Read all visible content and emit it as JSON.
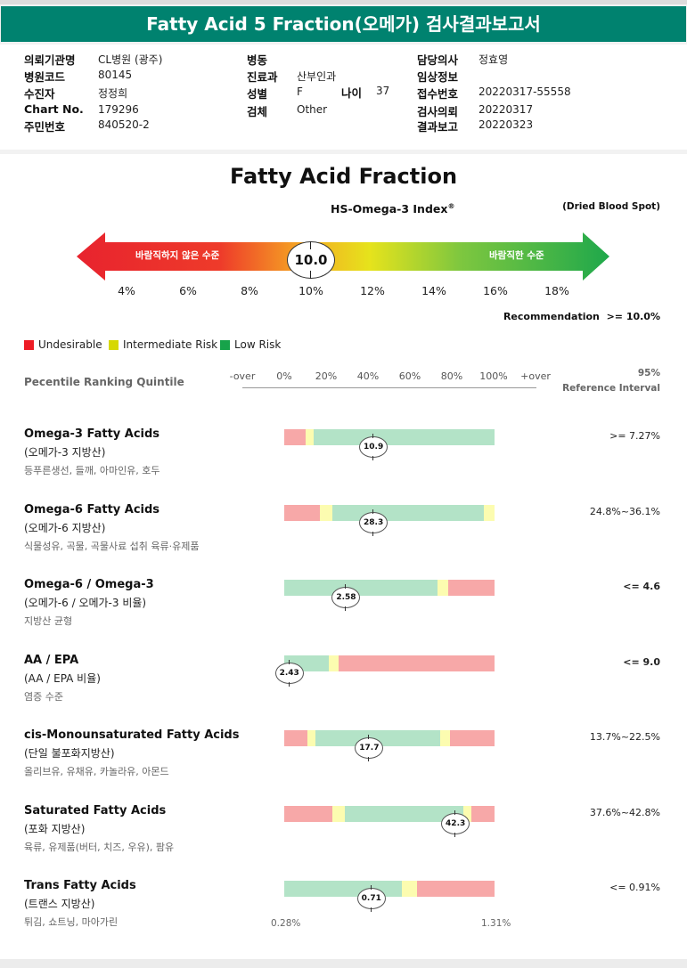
{
  "report": {
    "title": "Fatty Acid 5 Fraction(오메가) 검사결과보고서"
  },
  "patient_info": {
    "col1": [
      {
        "label": "의뢰기관명",
        "value": "CL병원 (광주)"
      },
      {
        "label": "병원코드",
        "value": "80145"
      },
      {
        "label": "수진자",
        "value": "정정희"
      },
      {
        "label": "Chart No.",
        "value": "179296"
      },
      {
        "label": "주민번호",
        "value": "840520-2"
      }
    ],
    "col2": [
      {
        "label": "병동",
        "value": ""
      },
      {
        "label": "진료과",
        "value": "산부인과"
      },
      {
        "label": "성별",
        "value": "F"
      },
      {
        "label": "검체",
        "value": "Other"
      }
    ],
    "age_label": "나이",
    "age_value": "37",
    "col3": [
      {
        "label": "담당의사",
        "value": "정효영"
      },
      {
        "label": "임상정보",
        "value": ""
      },
      {
        "label": "접수번호",
        "value": "20220317-55558"
      },
      {
        "label": "검사의뢰",
        "value": "20220317"
      },
      {
        "label": "결과보고",
        "value": "20220323"
      }
    ]
  },
  "index": {
    "chart_title": "Fatty Acid Fraction",
    "index_name": "HS-Omega-3 Index",
    "index_mark": "®",
    "sample_type": "(Dried Blood Spot)",
    "left_arrow_label": "바람직하지 않은 수준",
    "right_arrow_label": "바람직한 수준",
    "value": "10.0",
    "value_num": 10.0,
    "scale_ticks": [
      "4%",
      "6%",
      "8%",
      "10%",
      "12%",
      "14%",
      "16%",
      "18%"
    ],
    "recommendation_label": "Recommendation",
    "recommendation_value": ">= 10.0%"
  },
  "legend": [
    {
      "label": "Undesirable",
      "color": "#ee1c25"
    },
    {
      "label": "Intermediate Risk",
      "color": "#d6d800"
    },
    {
      "label": "Low Risk",
      "color": "#17a34a"
    }
  ],
  "percentile": {
    "heading": "Pecentile Ranking Quintile",
    "ticks": [
      "-over",
      "0%",
      "20%",
      "40%",
      "60%",
      "80%",
      "100%",
      "+over"
    ],
    "ref_heading_1": "95%",
    "ref_heading_2": "Reference Interval"
  },
  "colors": {
    "red": "#f7a8a8",
    "yellow": "#fcfcb0",
    "green": "#b3e3c7",
    "header": "#00826f"
  },
  "rows": [
    {
      "title": "Omega-3 Fatty Acids",
      "subtitle": "(오메가-3 지방산)",
      "desc": "등푸른생선, 들깨, 아마인유, 호두",
      "value": "10.9",
      "marker_pct": 42,
      "segments": [
        [
          "red",
          0,
          10
        ],
        [
          "yellow",
          10,
          14
        ],
        [
          "green",
          14,
          100
        ]
      ],
      "reference": ">= 7.27%",
      "ref_bold": false
    },
    {
      "title": "Omega-6 Fatty Acids",
      "subtitle": "(오메가-6 지방산)",
      "desc": "식물성유, 곡물, 곡물사료 섭취 육류·유제품",
      "value": "28.3",
      "marker_pct": 42,
      "segments": [
        [
          "red",
          0,
          17
        ],
        [
          "yellow",
          17,
          23
        ],
        [
          "green",
          23,
          95
        ],
        [
          "yellow",
          95,
          100
        ]
      ],
      "reference": "24.8%~36.1%",
      "ref_bold": false
    },
    {
      "title": "Omega-6 / Omega-3",
      "subtitle": "(오메가-6 / 오메가-3 비율)",
      "desc": "지방산 균형",
      "value": "2.58",
      "marker_pct": 29,
      "segments": [
        [
          "green",
          0,
          73
        ],
        [
          "yellow",
          73,
          78
        ],
        [
          "red",
          78,
          100
        ]
      ],
      "reference": "<= 4.6",
      "ref_bold": true
    },
    {
      "title": "AA / EPA",
      "subtitle": "(AA / EPA 비율)",
      "desc": "염증 수준",
      "value": "2.43",
      "marker_pct": 2,
      "segments": [
        [
          "green",
          0,
          21
        ],
        [
          "yellow",
          21,
          26
        ],
        [
          "red",
          26,
          100
        ]
      ],
      "reference": "<= 9.0",
      "ref_bold": true
    },
    {
      "title": "cis-Monounsaturated Fatty Acids",
      "subtitle": "(단일 불포화지방산)",
      "desc": "올리브유, 유채유, 카놀라유, 아몬드",
      "value": "17.7",
      "marker_pct": 40,
      "segments": [
        [
          "red",
          0,
          11
        ],
        [
          "yellow",
          11,
          15
        ],
        [
          "green",
          15,
          74
        ],
        [
          "yellow",
          74,
          79
        ],
        [
          "red",
          79,
          100
        ]
      ],
      "reference": "13.7%~22.5%",
      "ref_bold": false
    },
    {
      "title": "Saturated Fatty Acids",
      "subtitle": "(포화 지방산)",
      "desc": "육류, 유제품(버터, 치즈, 우유), 팜유",
      "value": "42.3",
      "marker_pct": 81,
      "segments": [
        [
          "red",
          0,
          23
        ],
        [
          "yellow",
          23,
          29
        ],
        [
          "green",
          29,
          85
        ],
        [
          "yellow",
          85,
          89
        ],
        [
          "red",
          89,
          100
        ]
      ],
      "reference": "37.6%~42.8%",
      "ref_bold": false
    },
    {
      "title": "Trans Fatty Acids",
      "subtitle": "(트랜스 지방산)",
      "desc": "튀김, 쇼트닝, 마아가린",
      "value": "0.71",
      "marker_pct": 41,
      "segments": [
        [
          "green",
          0,
          56
        ],
        [
          "yellow",
          56,
          63
        ],
        [
          "red",
          63,
          100
        ]
      ],
      "reference": "<= 0.91%",
      "ref_bold": false
    }
  ],
  "axis_end": {
    "left": "0.28%",
    "right": "1.31%"
  }
}
